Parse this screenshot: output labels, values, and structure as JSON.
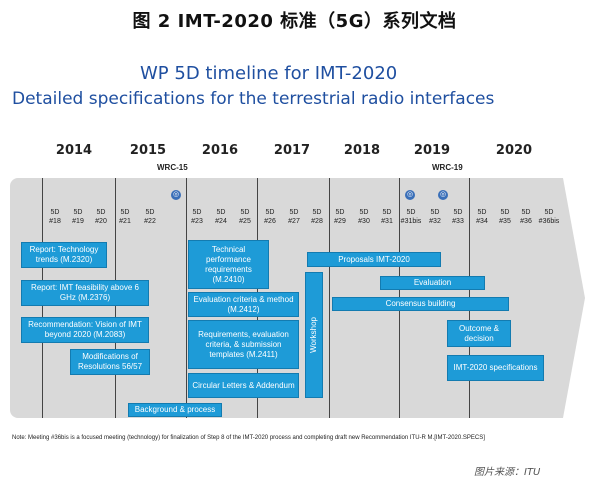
{
  "caption": "图 2 IMT-2020 标准（5G）系列文档",
  "slide": {
    "title": "WP 5D timeline for IMT-2020",
    "subtitle": "Detailed specifications for the terrestrial radio interfaces"
  },
  "years": [
    "2014",
    "2015",
    "2016",
    "2017",
    "2018",
    "2019",
    "2020"
  ],
  "wrc": [
    "WRC-15",
    "WRC-19"
  ],
  "meetings": [
    {
      "top": "5D",
      "num": "#18"
    },
    {
      "top": "5D",
      "num": "#19"
    },
    {
      "top": "5D",
      "num": "#20"
    },
    {
      "top": "5D",
      "num": "#21"
    },
    {
      "top": "5D",
      "num": "#22"
    },
    {
      "top": "5D",
      "num": "#23"
    },
    {
      "top": "5D",
      "num": "#24"
    },
    {
      "top": "5D",
      "num": "#25"
    },
    {
      "top": "5D",
      "num": "#26"
    },
    {
      "top": "5D",
      "num": "#27"
    },
    {
      "top": "5D",
      "num": "#28"
    },
    {
      "top": "5D",
      "num": "#29"
    },
    {
      "top": "5D",
      "num": "#30"
    },
    {
      "top": "5D",
      "num": "#31"
    },
    {
      "top": "5D",
      "num": "#31bis"
    },
    {
      "top": "5D",
      "num": "#32"
    },
    {
      "top": "5D",
      "num": "#33"
    },
    {
      "top": "5D",
      "num": "#34"
    },
    {
      "top": "5D",
      "num": "#35"
    },
    {
      "top": "5D",
      "num": "#36"
    },
    {
      "top": "5D",
      "num": "#36bis"
    }
  ],
  "boxes": {
    "report_trends": "Report: Technology trends (M.2320)",
    "report_imt_above": "Report: IMT feasibility above 6 GHz (M.2376)",
    "rec_vision": "Recommendation: Vision of IMT beyond 2020 (M.2083)",
    "modifications": "Modifications of Resolutions 56/57",
    "background": "Background & process",
    "tech_perf": "Technical performance requirements (M.2410)",
    "eval_criteria": "Evaluation criteria & method (M.2412)",
    "requirements": "Requirements, evaluation criteria, & submission templates (M.2411)",
    "circular": "Circular Letters & Addendum",
    "workshop": "Workshop",
    "proposals": "Proposals IMT-2020",
    "evaluation": "Evaluation",
    "consensus": "Consensus building",
    "outcome": "Outcome & decision",
    "imt_specs": "IMT-2020 specifications"
  },
  "note": "Note: Meeting #36bis is a focused meeting (technology) for finalization of Step 8 of the IMT-2020 process and completing draft new Recommendation ITU-R M.[IMT-2020.SPECS]",
  "source": "图片来源：ITU",
  "colors": {
    "box": "#1e9bd7",
    "title": "#1f4fa0",
    "band": "#d9d9d9"
  },
  "icons": [
    "itu-logo-icon",
    "arrow-right-icon"
  ]
}
